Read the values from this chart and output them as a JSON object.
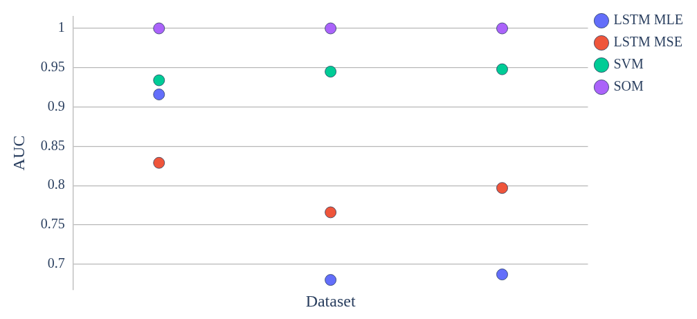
{
  "chart_data": {
    "type": "scatter",
    "xlabel": "Dataset",
    "ylabel": "AUC",
    "categories": [
      null,
      null,
      null
    ],
    "series": [
      {
        "name": "LSTM MLE",
        "color": "#636efa",
        "values": [
          0.916,
          0.68,
          0.687
        ]
      },
      {
        "name": "LSTM MSE",
        "color": "#ef553b",
        "values": [
          0.829,
          0.766,
          0.797
        ]
      },
      {
        "name": "SVM",
        "color": "#00cc96",
        "values": [
          0.934,
          0.945,
          0.948
        ]
      },
      {
        "name": "SOM",
        "color": "#ab63fa",
        "values": [
          1,
          1,
          1
        ]
      }
    ],
    "ylim": [
      0.668,
      1.015
    ],
    "yticks": [
      0.7,
      0.75,
      0.8,
      0.85,
      0.9,
      0.95,
      1
    ],
    "grid": "y",
    "legend": "top right",
    "marker": "circle",
    "tick_labels": "y"
  }
}
